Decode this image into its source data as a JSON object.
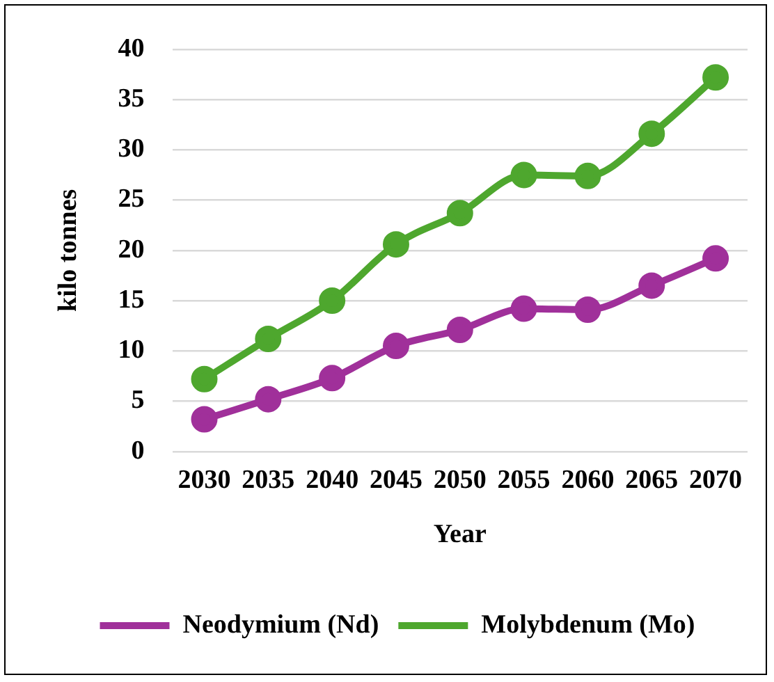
{
  "chart_data": {
    "type": "line",
    "xlabel": "Year",
    "ylabel": "kilo tonnes",
    "categories": [
      "2030",
      "2035",
      "2040",
      "2045",
      "2050",
      "2055",
      "2060",
      "2065",
      "2070"
    ],
    "series": [
      {
        "name": "Neodymium (Nd)",
        "color": "#a0309a",
        "values": [
          3.2,
          5.2,
          7.3,
          10.5,
          12.1,
          14.2,
          14.1,
          16.5,
          19.2
        ]
      },
      {
        "name": "Molybdenum (Mo)",
        "color": "#4ea72e",
        "values": [
          7.2,
          11.2,
          15.0,
          20.6,
          23.7,
          27.5,
          27.4,
          31.6,
          37.2
        ]
      }
    ],
    "ylim": [
      0,
      40
    ],
    "yticks": [
      0,
      5,
      10,
      15,
      20,
      25,
      30,
      35,
      40
    ],
    "grid": "y",
    "legend": "bottom",
    "marker": "circle",
    "line_style": "solid"
  }
}
